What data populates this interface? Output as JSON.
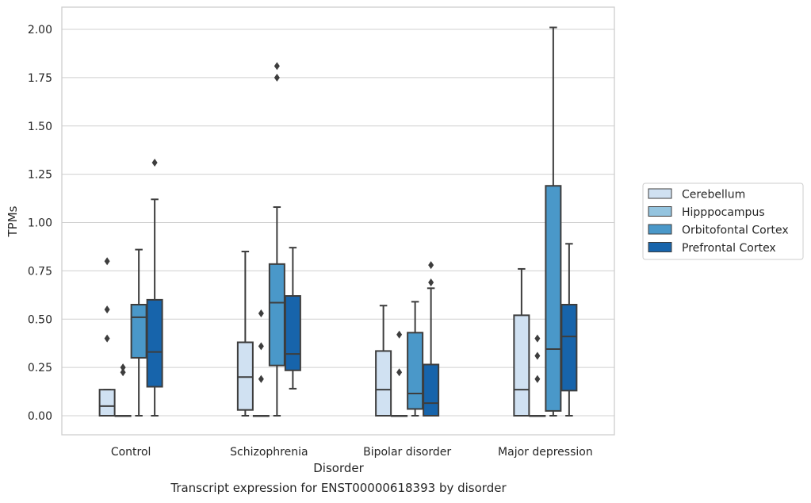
{
  "caption": "Transcript expression for ENST00000618393 by disorder",
  "chart_data": {
    "type": "box",
    "xlabel": "Disorder",
    "ylabel": "TPMs",
    "ylim": [
      -0.1,
      2.12
    ],
    "yticks": [
      "0.00",
      "0.25",
      "0.50",
      "0.75",
      "1.00",
      "1.25",
      "1.50",
      "1.75",
      "2.00"
    ],
    "grid": true,
    "legend_position": "right, outside plot",
    "categories": [
      "Control",
      "Schizophrenia",
      "Bipolar disorder",
      "Major depression"
    ],
    "series": [
      {
        "name": "Cerebellum",
        "color": "#d0e1f2",
        "boxes": [
          {
            "q1": 0.0,
            "median": 0.05,
            "q3": 0.135,
            "whisker_low": 0.0,
            "whisker_high": 0.135,
            "outliers": [
              0.8,
              0.55,
              0.4
            ]
          },
          {
            "q1": 0.03,
            "median": 0.2,
            "q3": 0.38,
            "whisker_low": 0.0,
            "whisker_high": 0.85,
            "outliers": []
          },
          {
            "q1": 0.0,
            "median": 0.135,
            "q3": 0.335,
            "whisker_low": 0.0,
            "whisker_high": 0.57,
            "outliers": []
          },
          {
            "q1": 0.0,
            "median": 0.135,
            "q3": 0.52,
            "whisker_low": 0.0,
            "whisker_high": 0.76,
            "outliers": []
          }
        ]
      },
      {
        "name": "Hipppocampus",
        "color": "#94c4df",
        "boxes": [
          {
            "q1": 0.0,
            "median": 0.0,
            "q3": 0.0,
            "whisker_low": 0.0,
            "whisker_high": 0.0,
            "outliers": [
              0.25,
              0.225
            ]
          },
          {
            "q1": 0.0,
            "median": 0.0,
            "q3": 0.0,
            "whisker_low": 0.0,
            "whisker_high": 0.0,
            "outliers": [
              0.53,
              0.36,
              0.19
            ]
          },
          {
            "q1": 0.0,
            "median": 0.0,
            "q3": 0.0,
            "whisker_low": 0.0,
            "whisker_high": 0.0,
            "outliers": [
              0.42,
              0.225
            ]
          },
          {
            "q1": 0.0,
            "median": 0.0,
            "q3": 0.0,
            "whisker_low": 0.0,
            "whisker_high": 0.0,
            "outliers": [
              0.4,
              0.31,
              0.19
            ]
          }
        ]
      },
      {
        "name": "Orbitofontal Cortex",
        "color": "#4a98c9",
        "boxes": [
          {
            "q1": 0.3,
            "median": 0.51,
            "q3": 0.575,
            "whisker_low": 0.0,
            "whisker_high": 0.86,
            "outliers": []
          },
          {
            "q1": 0.26,
            "median": 0.585,
            "q3": 0.785,
            "whisker_low": 0.0,
            "whisker_high": 1.08,
            "outliers": [
              1.81,
              1.75
            ]
          },
          {
            "q1": 0.035,
            "median": 0.115,
            "q3": 0.43,
            "whisker_low": 0.0,
            "whisker_high": 0.59,
            "outliers": []
          },
          {
            "q1": 0.025,
            "median": 0.345,
            "q3": 1.19,
            "whisker_low": 0.0,
            "whisker_high": 2.01,
            "outliers": []
          }
        ]
      },
      {
        "name": "Prefrontal Cortex",
        "color": "#1764ab",
        "boxes": [
          {
            "q1": 0.15,
            "median": 0.33,
            "q3": 0.6,
            "whisker_low": 0.0,
            "whisker_high": 1.12,
            "outliers": [
              1.31
            ]
          },
          {
            "q1": 0.235,
            "median": 0.32,
            "q3": 0.62,
            "whisker_low": 0.14,
            "whisker_high": 0.87,
            "outliers": []
          },
          {
            "q1": 0.0,
            "median": 0.065,
            "q3": 0.265,
            "whisker_low": 0.0,
            "whisker_high": 0.66,
            "outliers": [
              0.78,
              0.69
            ]
          },
          {
            "q1": 0.13,
            "median": 0.41,
            "q3": 0.575,
            "whisker_low": 0.0,
            "whisker_high": 0.89,
            "outliers": []
          }
        ]
      }
    ]
  }
}
